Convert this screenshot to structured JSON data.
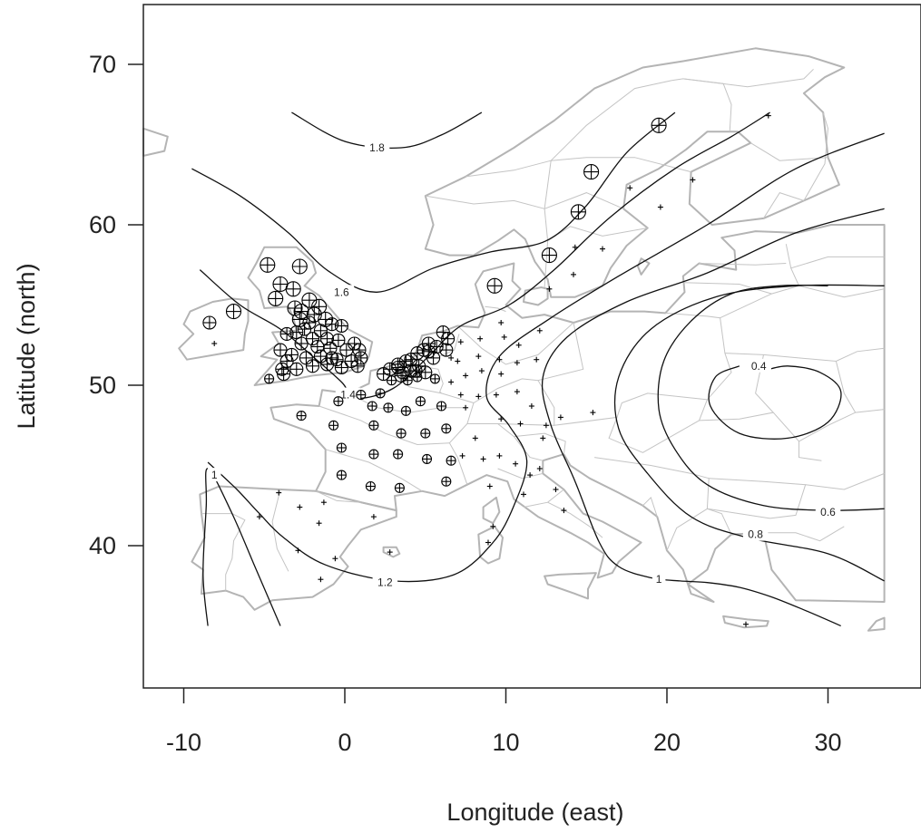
{
  "chart_data": {
    "type": "scatter",
    "title": "",
    "xlabel": "Longitude (east)",
    "ylabel": "Latitude (north)",
    "xlim": [
      -12.5,
      35.5
    ],
    "ylim": [
      31,
      73.5
    ],
    "xticks": [
      -10,
      0,
      10,
      20,
      30
    ],
    "yticks": [
      40,
      50,
      60,
      70
    ],
    "xtick_labels": [
      "-10",
      "0",
      "10",
      "20",
      "30"
    ],
    "ytick_labels": [
      "40",
      "50",
      "60",
      "70"
    ],
    "grid": false,
    "background_map": "Europe regional boundaries",
    "colors": {
      "map": "#b4b4b4",
      "contour": "#111111",
      "points": "#000000"
    },
    "contours": [
      {
        "level": "1.8",
        "points": [
          [
            -3.3,
            67
          ],
          [
            0,
            65.2
          ],
          [
            3.5,
            64.8
          ],
          [
            6,
            65.6
          ],
          [
            8.5,
            67
          ]
        ],
        "label_at": [
          2,
          64.8
        ]
      },
      {
        "level": "1.6",
        "points": [
          [
            -9.5,
            63.5
          ],
          [
            -6.5,
            61.8
          ],
          [
            -3.5,
            59.5
          ],
          [
            -1,
            57.1
          ],
          [
            2,
            55.8
          ],
          [
            5.5,
            57.3
          ],
          [
            9,
            58.3
          ],
          [
            12.5,
            59
          ],
          [
            15,
            61.2
          ],
          [
            17.5,
            64.5
          ],
          [
            20.5,
            67
          ]
        ],
        "label_at": [
          -0.2,
          55.8
        ]
      },
      {
        "level": "1.4",
        "points": [
          [
            -9,
            57.2
          ],
          [
            -6.5,
            55
          ],
          [
            -4,
            53.5
          ],
          [
            -2,
            51.8
          ],
          [
            -0.2,
            50.2
          ],
          [
            0.7,
            49.2
          ],
          [
            3,
            49.8
          ],
          [
            5.2,
            51.8
          ],
          [
            7.2,
            53.7
          ],
          [
            10.2,
            55
          ],
          [
            13,
            57.2
          ],
          [
            16.5,
            60.5
          ],
          [
            20.5,
            63.5
          ],
          [
            24,
            65.5
          ],
          [
            26.4,
            67
          ]
        ],
        "label_at": [
          0.2,
          49.4
        ]
      },
      {
        "level": "1.2",
        "points": [
          [
            -8.5,
            45.2
          ],
          [
            -6.7,
            43.5
          ],
          [
            -5.3,
            42
          ],
          [
            -3.8,
            40.5
          ],
          [
            -1.2,
            38.8
          ],
          [
            3,
            37.8
          ],
          [
            6.8,
            38.2
          ],
          [
            9.2,
            40.2
          ],
          [
            10.5,
            42.5
          ],
          [
            11.3,
            45.3
          ],
          [
            10.2,
            47.5
          ],
          [
            8.8,
            49.3
          ],
          [
            9.6,
            51.8
          ],
          [
            12.8,
            54.2
          ],
          [
            17,
            56.8
          ],
          [
            22.5,
            60
          ],
          [
            28,
            63.5
          ],
          [
            33.5,
            65.7
          ]
        ],
        "label_at": [
          2.5,
          37.7
        ]
      },
      {
        "level": "1",
        "points": [
          [
            -8.5,
            35
          ],
          [
            -8.8,
            38.2
          ],
          [
            -8.6,
            42.5
          ],
          [
            -8.5,
            44.8
          ],
          [
            -7,
            42
          ],
          [
            -5.5,
            38.5
          ],
          [
            -4,
            35
          ]
        ],
        "label_at": [
          -8.1,
          44.4
        ]
      },
      {
        "level": "1",
        "points": [
          [
            33.5,
            61
          ],
          [
            28,
            59.5
          ],
          [
            22.5,
            57
          ],
          [
            17.5,
            55.2
          ],
          [
            13.8,
            53
          ],
          [
            12.3,
            50.5
          ],
          [
            12.8,
            47.5
          ],
          [
            14.3,
            44
          ],
          [
            15.8,
            40.2
          ],
          [
            17,
            38.7
          ],
          [
            19,
            38
          ],
          [
            20.8,
            37.8
          ],
          [
            22.5,
            37.7
          ],
          [
            24.5,
            37.4
          ],
          [
            26.5,
            36.8
          ],
          [
            28.5,
            36
          ],
          [
            30.8,
            35
          ]
        ],
        "label_at": [
          19.5,
          37.9
        ]
      },
      {
        "level": "0.8",
        "points": [
          [
            33.5,
            56.2
          ],
          [
            28,
            56.2
          ],
          [
            23,
            55.5
          ],
          [
            19,
            53.5
          ],
          [
            17,
            50.5
          ],
          [
            17,
            47.3
          ],
          [
            18.8,
            44.5
          ],
          [
            21.5,
            41.8
          ],
          [
            25,
            40.5
          ],
          [
            30,
            39.5
          ],
          [
            33.5,
            37.8
          ]
        ],
        "label_at": [
          25.5,
          40.7
        ]
      },
      {
        "level": "0.6",
        "points": [
          [
            33.5,
            42.3
          ],
          [
            30,
            42.2
          ],
          [
            26,
            42.5
          ],
          [
            22.5,
            43.8
          ],
          [
            20.5,
            46
          ],
          [
            19.5,
            48.5
          ],
          [
            19.8,
            51.5
          ],
          [
            21.5,
            54
          ],
          [
            24,
            55.7
          ],
          [
            27,
            56.2
          ],
          [
            30,
            56.2
          ]
        ],
        "label_at": [
          30,
          42.1
        ]
      },
      {
        "level": "0.4",
        "points": [
          [
            26,
            50.9
          ],
          [
            27.5,
            51.2
          ],
          [
            29.5,
            50.8
          ],
          [
            30.8,
            49.6
          ],
          [
            30,
            47.7
          ],
          [
            27.5,
            46.7
          ],
          [
            24.5,
            47
          ],
          [
            22.7,
            48.7
          ],
          [
            23,
            50.5
          ],
          [
            24.5,
            51.2
          ]
        ],
        "label_at": [
          25.7,
          51.2
        ]
      }
    ],
    "series": [
      {
        "marker": "circle-plus",
        "points": [
          [
            -4.8,
            57.5
          ],
          [
            -2.8,
            57.4
          ],
          [
            -4,
            56.3
          ],
          [
            -3.2,
            56
          ],
          [
            -2.2,
            55.3
          ],
          [
            -4.3,
            55.4
          ],
          [
            -3.1,
            54.8
          ],
          [
            -2.7,
            54.6
          ],
          [
            -1.6,
            54.9
          ],
          [
            -1.9,
            54.4
          ],
          [
            -2.8,
            54.1
          ],
          [
            -1.2,
            54.1
          ],
          [
            -2.2,
            53.9
          ],
          [
            -3,
            53.3
          ],
          [
            -2.5,
            53.5
          ],
          [
            -1.5,
            53.4
          ],
          [
            -0.8,
            53.8
          ],
          [
            -0.2,
            53.7
          ],
          [
            -3.6,
            53.2
          ],
          [
            -2,
            52.9
          ],
          [
            -1.1,
            52.9
          ],
          [
            -0.4,
            52.8
          ],
          [
            0.6,
            52.6
          ],
          [
            -2.7,
            52.6
          ],
          [
            -1.7,
            52.4
          ],
          [
            -0.9,
            52.3
          ],
          [
            0.1,
            52.2
          ],
          [
            0.9,
            52.2
          ],
          [
            -4,
            52.2
          ],
          [
            -3.3,
            51.9
          ],
          [
            -2.4,
            51.7
          ],
          [
            -1.5,
            51.8
          ],
          [
            -0.5,
            51.6
          ],
          [
            0.4,
            51.5
          ],
          [
            1,
            51.7
          ],
          [
            -1.1,
            51.3
          ],
          [
            -2,
            51.2
          ],
          [
            -3,
            51
          ],
          [
            -0.2,
            51.1
          ],
          [
            0.8,
            51.2
          ],
          [
            -3.6,
            51.5
          ],
          [
            -3.9,
            51
          ],
          [
            -0.8,
            51.7
          ],
          [
            -6.9,
            54.6
          ],
          [
            -8.4,
            53.9
          ],
          [
            -4.7,
            50.4
          ],
          [
            -3.8,
            50.7
          ],
          [
            -0.4,
            49
          ],
          [
            1,
            49.4
          ],
          [
            2.4,
            50.7
          ],
          [
            2.8,
            51
          ],
          [
            3.3,
            51.1
          ],
          [
            3.6,
            50.8
          ],
          [
            4.1,
            50.9
          ],
          [
            4.6,
            51.2
          ],
          [
            4.1,
            51.6
          ],
          [
            4.9,
            52.2
          ],
          [
            5.2,
            52.6
          ],
          [
            4.5,
            52
          ],
          [
            5.5,
            51.7
          ],
          [
            3.8,
            51.5
          ],
          [
            3.3,
            51.3
          ],
          [
            5.2,
            52.1
          ],
          [
            5.7,
            52.4
          ],
          [
            6.4,
            52.9
          ],
          [
            6.1,
            53.3
          ],
          [
            4.5,
            50.5
          ],
          [
            5.6,
            50.4
          ],
          [
            5,
            50.8
          ],
          [
            3.9,
            50.3
          ],
          [
            2.9,
            50.3
          ],
          [
            3.5,
            50.6
          ],
          [
            4.4,
            50.9
          ],
          [
            6.3,
            52.2
          ],
          [
            1.7,
            48.7
          ],
          [
            2.7,
            48.6
          ],
          [
            2.2,
            49.5
          ],
          [
            3.8,
            48.4
          ],
          [
            4.7,
            49
          ],
          [
            6,
            48.7
          ],
          [
            -2.7,
            48.1
          ],
          [
            -0.7,
            47.5
          ],
          [
            1.8,
            47.5
          ],
          [
            3.5,
            47
          ],
          [
            5,
            47
          ],
          [
            6.3,
            47.3
          ],
          [
            -0.2,
            46.1
          ],
          [
            1.8,
            45.7
          ],
          [
            3.3,
            45.7
          ],
          [
            5.1,
            45.4
          ],
          [
            6.6,
            45.3
          ],
          [
            -0.2,
            44.4
          ],
          [
            1.6,
            43.7
          ],
          [
            3.4,
            43.6
          ],
          [
            6.3,
            44
          ],
          [
            9.3,
            56.2
          ],
          [
            12.7,
            58.1
          ],
          [
            14.5,
            60.8
          ],
          [
            15.3,
            63.3
          ],
          [
            19.5,
            66.2
          ]
        ]
      },
      {
        "marker": "plus",
        "points": [
          [
            -8.1,
            52.6
          ],
          [
            -4.1,
            43.3
          ],
          [
            -1.3,
            42.7
          ],
          [
            -2.8,
            42.4
          ],
          [
            -1.6,
            41.4
          ],
          [
            -5.3,
            41.8
          ],
          [
            -2.9,
            39.7
          ],
          [
            -0.6,
            39.2
          ],
          [
            -1.5,
            37.9
          ],
          [
            1.8,
            41.8
          ],
          [
            2.8,
            39.6
          ],
          [
            8.9,
            40.2
          ],
          [
            9,
            43.7
          ],
          [
            8.1,
            46.7
          ],
          [
            7.3,
            45.6
          ],
          [
            8.6,
            45.4
          ],
          [
            9.6,
            45.6
          ],
          [
            10.6,
            45.1
          ],
          [
            11.5,
            44.4
          ],
          [
            11.1,
            43.2
          ],
          [
            9.7,
            47.9
          ],
          [
            10.9,
            47.6
          ],
          [
            11.6,
            48.7
          ],
          [
            12.3,
            46.7
          ],
          [
            7.5,
            48.6
          ],
          [
            8.3,
            49.3
          ],
          [
            9.4,
            49.4
          ],
          [
            10.7,
            49.6
          ],
          [
            7.5,
            50.6
          ],
          [
            8.5,
            50.9
          ],
          [
            9.7,
            50.7
          ],
          [
            7,
            51.5
          ],
          [
            8.3,
            51.8
          ],
          [
            9.6,
            51.6
          ],
          [
            10.7,
            51.4
          ],
          [
            7.2,
            52.7
          ],
          [
            8.4,
            52.9
          ],
          [
            9.9,
            53
          ],
          [
            10.8,
            52.5
          ],
          [
            9.7,
            53.9
          ],
          [
            11.9,
            51.6
          ],
          [
            6.6,
            51.7
          ],
          [
            7.2,
            49.4
          ],
          [
            6.6,
            50.2
          ],
          [
            12.1,
            53.4
          ],
          [
            12.5,
            47.5
          ],
          [
            13.1,
            43.5
          ],
          [
            13.6,
            42.2
          ],
          [
            12.1,
            44.8
          ],
          [
            15.4,
            48.3
          ],
          [
            13.4,
            48
          ],
          [
            17.7,
            62.3
          ],
          [
            16,
            58.5
          ],
          [
            14.2,
            56.9
          ],
          [
            12.7,
            56
          ],
          [
            14.3,
            58.6
          ],
          [
            19.6,
            61.1
          ],
          [
            21.6,
            62.8
          ],
          [
            26.3,
            66.8
          ],
          [
            24.9,
            35.1
          ],
          [
            9.2,
            41.2
          ]
        ]
      }
    ]
  }
}
